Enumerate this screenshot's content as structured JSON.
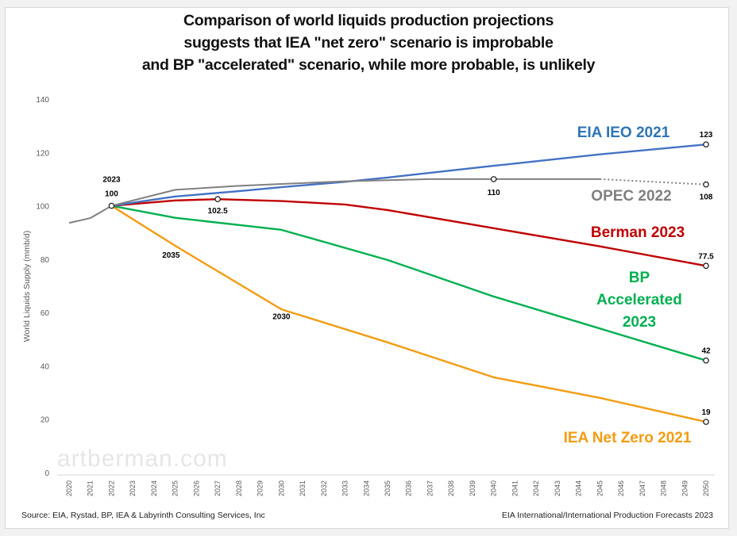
{
  "chart_data": {
    "type": "line",
    "title": [
      "Comparison of world liquids production projections",
      "suggests that IEA \"net zero\" scenario is improbable",
      "and BP \"accelerated\" scenario, while more probable, is unlikely"
    ],
    "xlabel": "",
    "ylabel": "World Liquids Supply (mmb/d)",
    "xlim": [
      2020,
      2050
    ],
    "ylim": [
      0,
      140
    ],
    "yticks": [
      0,
      20,
      40,
      60,
      80,
      100,
      120,
      140
    ],
    "xticks": [
      2020,
      2021,
      2022,
      2023,
      2024,
      2025,
      2026,
      2027,
      2028,
      2029,
      2030,
      2031,
      2032,
      2033,
      2034,
      2035,
      2036,
      2037,
      2038,
      2039,
      2040,
      2041,
      2042,
      2043,
      2044,
      2045,
      2046,
      2047,
      2048,
      2049,
      2050
    ],
    "grid": false,
    "legend": "inline labels on right",
    "series": [
      {
        "name": "OPEC 2022",
        "color": "#808080",
        "style": "solid until 2045, dotted to 2050",
        "x": [
          2020,
          2021,
          2022,
          2025,
          2028,
          2030,
          2033,
          2037,
          2040,
          2045,
          2050
        ],
        "values": [
          93.6,
          95.4,
          100,
          106,
          107.5,
          108.2,
          109.2,
          110,
          110,
          110,
          108
        ],
        "dotted_from": 2045
      },
      {
        "name": "EIA IEO 2021",
        "color": "#4472c4",
        "x": [
          2022,
          2025,
          2028,
          2030,
          2033,
          2035,
          2040,
          2045,
          2050
        ],
        "values": [
          100,
          103.5,
          105.5,
          107,
          109,
          110.6,
          115,
          119.3,
          123
        ]
      },
      {
        "name": "Berman 2023",
        "color": "#c00000",
        "x": [
          2022,
          2025,
          2027,
          2030,
          2033,
          2035,
          2040,
          2045,
          2050
        ],
        "values": [
          100,
          102,
          102.5,
          101.8,
          100.5,
          98.4,
          91.6,
          84.8,
          77.5
        ]
      },
      {
        "name": "BP Accelerated 2023",
        "color": "#00b050",
        "x": [
          2022,
          2025,
          2030,
          2035,
          2040,
          2045,
          2050
        ],
        "values": [
          100,
          95.5,
          91,
          79.7,
          66,
          54,
          42
        ]
      },
      {
        "name": "IEA Net Zero 2021",
        "color": "#f39c12",
        "x": [
          2022,
          2025,
          2030,
          2035,
          2040,
          2045,
          2050
        ],
        "values": [
          100,
          85,
          61.2,
          48.8,
          35.7,
          28,
          19
        ]
      }
    ],
    "markers": [
      {
        "x": 2022,
        "y": 100,
        "label": "100",
        "label2": "2023"
      },
      {
        "x": 2027,
        "y": 102.5,
        "label": "102.5"
      },
      {
        "x": 2040,
        "y": 110,
        "label": "110"
      },
      {
        "x": 2050,
        "y": 123,
        "label": "123"
      },
      {
        "x": 2050,
        "y": 108,
        "label": "108"
      },
      {
        "x": 2050,
        "y": 77.5,
        "label": "77.5"
      },
      {
        "x": 2050,
        "y": 42,
        "label": "42"
      },
      {
        "x": 2050,
        "y": 19,
        "label": "19"
      }
    ],
    "annotations": [
      {
        "text": "2035",
        "x": 2024.8,
        "y": 80.5
      },
      {
        "text": "2030",
        "x": 2030,
        "y": 57.5
      }
    ],
    "series_labels": [
      {
        "lines": [
          "EIA IEO 2021"
        ],
        "color": "#2e75b6"
      },
      {
        "lines": [
          "OPEC 2022"
        ],
        "color": "#808080"
      },
      {
        "lines": [
          "Berman 2023"
        ],
        "color": "#c00000"
      },
      {
        "lines": [
          "BP",
          "Accelerated",
          "2023"
        ],
        "color": "#00b050"
      },
      {
        "lines": [
          "IEA Net Zero 2021"
        ],
        "color": "#f39c12"
      }
    ]
  },
  "watermark": "artberman.com",
  "footer": {
    "source": "Source: EIA, Rystad, BP, IEA &  Labyrinth Consulting Services, Inc",
    "right": "EIA International/International Production Forecasts 2023"
  }
}
